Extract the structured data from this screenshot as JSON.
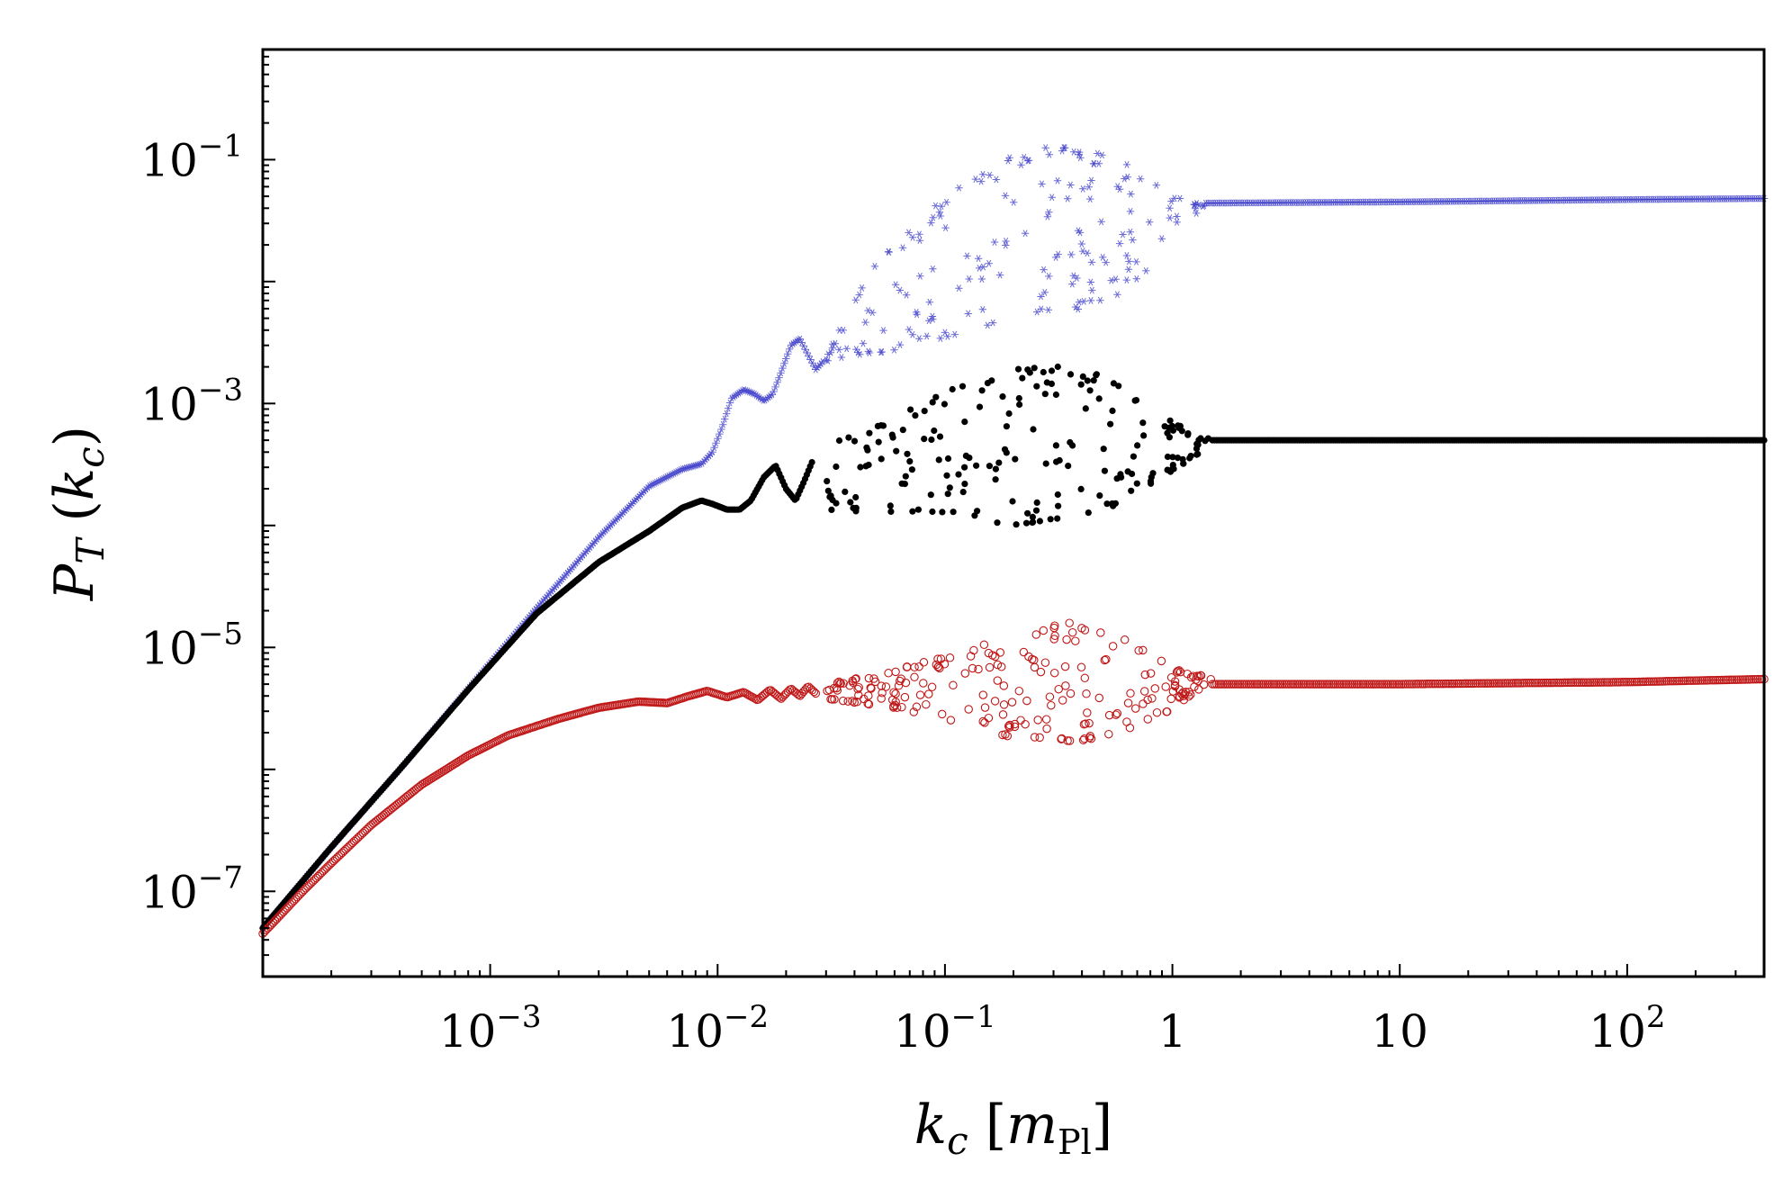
{
  "chart_data": {
    "type": "scatter",
    "title": "",
    "xlabel": "k_c [m_Pl]",
    "ylabel": "P_T (k_c)",
    "xlabel_parts": {
      "var": "k",
      "sub": "c",
      "bracket_open": " [",
      "unit": "m",
      "unit_sub": "Pl",
      "bracket_close": "]"
    },
    "ylabel_parts": {
      "var": "P",
      "sub": "T",
      "paren_open": " (",
      "arg": "k",
      "arg_sub": "c",
      "paren_close": ")"
    },
    "xscale": "log",
    "yscale": "log",
    "xlim": [
      0.0001,
      400
    ],
    "ylim": [
      2e-08,
      0.8
    ],
    "xticks": [
      {
        "value": 0.001,
        "base": "10",
        "exp": "−3"
      },
      {
        "value": 0.01,
        "base": "10",
        "exp": "−2"
      },
      {
        "value": 0.1,
        "base": "10",
        "exp": "−1"
      },
      {
        "value": 1,
        "base": "1",
        "exp": ""
      },
      {
        "value": 10,
        "base": "10",
        "exp": ""
      },
      {
        "value": 100,
        "base": "10",
        "exp": "2"
      }
    ],
    "yticks": [
      {
        "value": 1e-07,
        "base": "10",
        "exp": "−7"
      },
      {
        "value": 1e-05,
        "base": "10",
        "exp": "−5"
      },
      {
        "value": 0.001,
        "base": "10",
        "exp": "−3"
      },
      {
        "value": 0.1,
        "base": "10",
        "exp": "−1"
      }
    ],
    "series": [
      {
        "name": "blue",
        "marker": "star",
        "color": "#3b3bc9",
        "smooth": {
          "x": [
            0.0001,
            0.0002,
            0.0004,
            0.0008,
            0.0016,
            0.003,
            0.005,
            0.007,
            0.0085,
            0.0095,
            0.0105,
            0.0115,
            0.013,
            0.0145,
            0.016,
            0.0175,
            0.019,
            0.021,
            0.023,
            0.025,
            0.027,
            0.029
          ],
          "y": [
            5e-08,
            2.3e-07,
            1e-06,
            4.6e-06,
            2.1e-05,
            8e-05,
            0.00021,
            0.00029,
            0.00032,
            0.0004,
            0.00065,
            0.0011,
            0.0013,
            0.0012,
            0.00105,
            0.0012,
            0.0018,
            0.003,
            0.0034,
            0.0025,
            0.0019,
            0.0022
          ]
        },
        "band": {
          "x_min": 0.029,
          "x_max": 1.4,
          "lower": [
            [
              0.029,
              0.0022
            ],
            [
              0.05,
              0.0025
            ],
            [
              0.1,
              0.0035
            ],
            [
              0.2,
              0.005
            ],
            [
              0.4,
              0.006
            ],
            [
              0.7,
              0.009
            ],
            [
              1.0,
              0.025
            ],
            [
              1.4,
              0.042
            ]
          ],
          "upper": [
            [
              0.029,
              0.0022
            ],
            [
              0.05,
              0.015
            ],
            [
              0.1,
              0.05
            ],
            [
              0.2,
              0.11
            ],
            [
              0.3,
              0.13
            ],
            [
              0.5,
              0.11
            ],
            [
              0.8,
              0.075
            ],
            [
              1.0,
              0.05
            ],
            [
              1.4,
              0.043
            ]
          ],
          "count": 190
        },
        "plateau": {
          "x": [
            1.4,
            10,
            100,
            400
          ],
          "y": [
            0.044,
            0.045,
            0.047,
            0.048
          ]
        }
      },
      {
        "name": "black",
        "marker": "dot",
        "color": "#000000",
        "smooth": {
          "x": [
            0.0001,
            0.0002,
            0.0004,
            0.0008,
            0.0016,
            0.003,
            0.005,
            0.007,
            0.0085,
            0.0095,
            0.011,
            0.0125,
            0.014,
            0.016,
            0.018,
            0.02,
            0.022,
            0.024,
            0.026
          ],
          "y": [
            5e-08,
            2.3e-07,
            1e-06,
            4.5e-06,
            1.9e-05,
            5e-05,
            9e-05,
            0.00014,
            0.00016,
            0.00015,
            0.000135,
            0.000135,
            0.00016,
            0.00025,
            0.00031,
            0.0002,
            0.00016,
            0.00023,
            0.00033
          ]
        },
        "band": {
          "x_min": 0.03,
          "x_max": 1.5,
          "lower": [
            [
              0.03,
              0.00013
            ],
            [
              0.08,
              0.00013
            ],
            [
              0.2,
              0.0001
            ],
            [
              0.5,
              0.00013
            ],
            [
              0.9,
              0.00025
            ],
            [
              1.5,
              0.00045
            ]
          ],
          "upper": [
            [
              0.03,
              0.00045
            ],
            [
              0.08,
              0.0011
            ],
            [
              0.2,
              0.0019
            ],
            [
              0.35,
              0.0021
            ],
            [
              0.6,
              0.0015
            ],
            [
              1.0,
              0.0007
            ],
            [
              1.5,
              0.0005
            ]
          ],
          "count": 200
        },
        "plateau": {
          "x": [
            1.5,
            10,
            100,
            400
          ],
          "y": [
            0.0005,
            0.0005,
            0.0005,
            0.0005
          ]
        }
      },
      {
        "name": "red",
        "marker": "circle",
        "color": "#c01818",
        "smooth": {
          "x": [
            0.0001,
            0.00015,
            0.0002,
            0.0003,
            0.0005,
            0.0008,
            0.0012,
            0.002,
            0.003,
            0.0045,
            0.006,
            0.0075,
            0.009,
            0.011,
            0.013,
            0.015,
            0.017,
            0.019,
            0.021,
            0.023,
            0.025,
            0.027
          ],
          "y": [
            4.5e-08,
            1e-07,
            1.7e-07,
            3.5e-07,
            7.5e-07,
            1.3e-06,
            1.9e-06,
            2.6e-06,
            3.2e-06,
            3.6e-06,
            3.5e-06,
            4e-06,
            4.4e-06,
            3.9e-06,
            4.3e-06,
            3.7e-06,
            4.5e-06,
            3.8e-06,
            4.6e-06,
            4e-06,
            4.8e-06,
            4.2e-06
          ]
        },
        "band": {
          "x_min": 0.03,
          "x_max": 1.5,
          "lower": [
            [
              0.03,
              3.8e-06
            ],
            [
              0.06,
              3.2e-06
            ],
            [
              0.1,
              2.6e-06
            ],
            [
              0.2,
              1.8e-06
            ],
            [
              0.4,
              1.7e-06
            ],
            [
              0.8,
              2.4e-06
            ],
            [
              1.2,
              4e-06
            ],
            [
              1.5,
              5e-06
            ]
          ],
          "upper": [
            [
              0.03,
              5e-06
            ],
            [
              0.06,
              6.5e-06
            ],
            [
              0.1,
              8.5e-06
            ],
            [
              0.2,
              1.3e-05
            ],
            [
              0.35,
              1.6e-05
            ],
            [
              0.6,
              1.2e-05
            ],
            [
              1.0,
              7e-06
            ],
            [
              1.5,
              5.5e-06
            ]
          ],
          "count": 230
        },
        "plateau": {
          "x": [
            1.5,
            10,
            100,
            400
          ],
          "y": [
            5e-06,
            5e-06,
            5.2e-06,
            5.5e-06
          ]
        }
      }
    ]
  }
}
